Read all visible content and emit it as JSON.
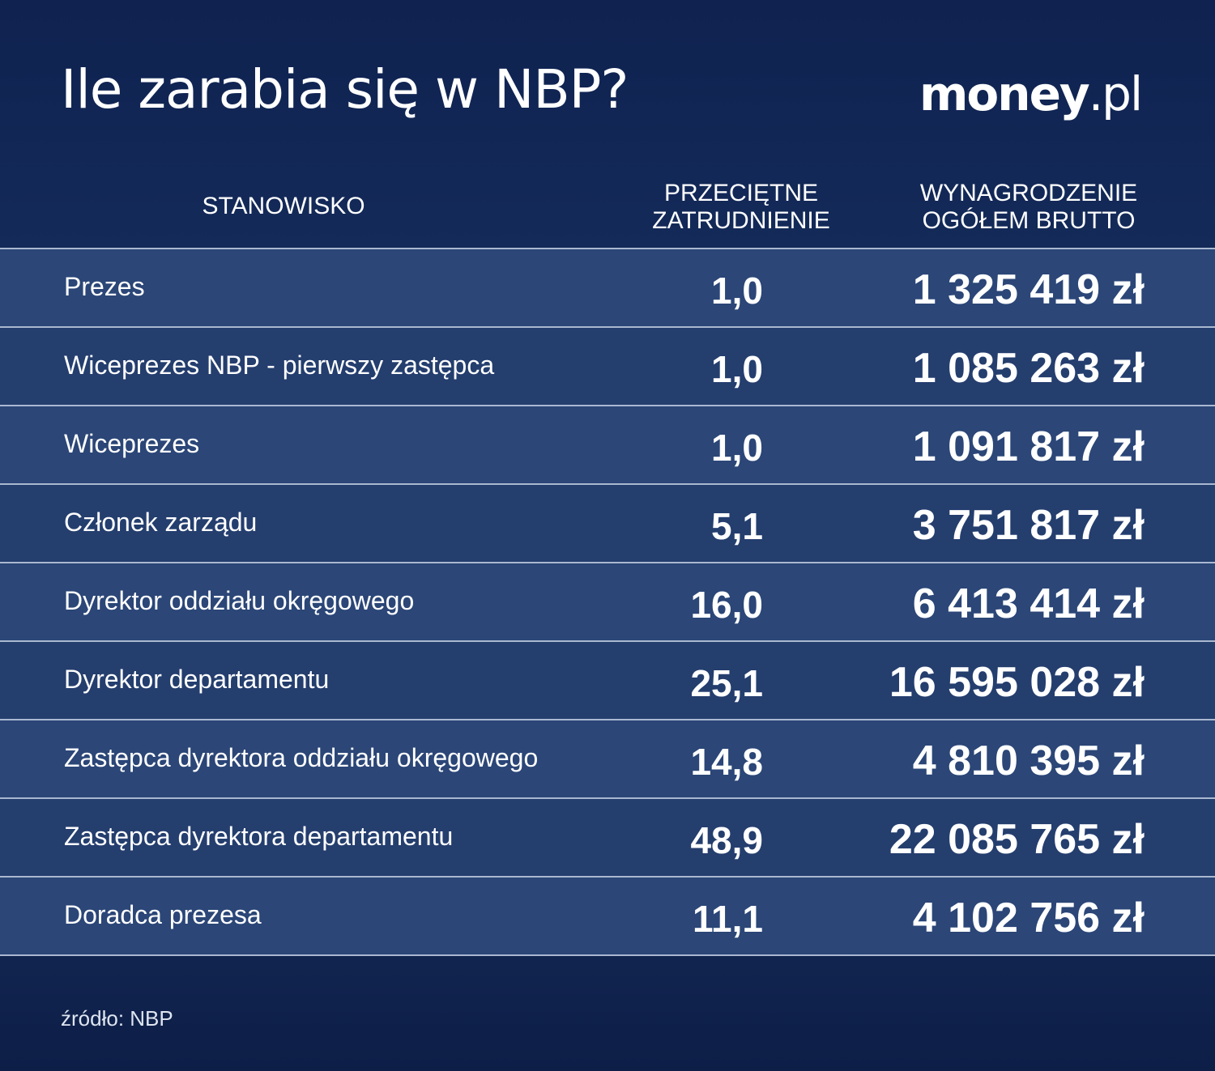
{
  "title": "Ile zarabia się w NBP?",
  "logo": {
    "main": "money",
    "suffix": ".pl"
  },
  "source": "źródło: NBP",
  "chart_data": {
    "type": "table",
    "title": "Ile zarabia się w NBP?",
    "columns": [
      "STANOWISKO",
      "PRZECIĘTNE ZATRUDNIENIE",
      "WYNAGRODZENIE OGÓŁEM BRUTTO"
    ],
    "column_lines": [
      [
        "STANOWISKO"
      ],
      [
        "PRZECIĘTNE",
        "ZATRUDNIENIE"
      ],
      [
        "WYNAGRODZENIE",
        "OGÓŁEM BRUTTO"
      ]
    ],
    "rows": [
      {
        "position": "Prezes",
        "employment": "1,0",
        "salary": "1 325 419 zł"
      },
      {
        "position": "Wiceprezes NBP - pierwszy zastępca",
        "employment": "1,0",
        "salary": "1 085 263 zł"
      },
      {
        "position": "Wiceprezes",
        "employment": "1,0",
        "salary": "1 091 817 zł"
      },
      {
        "position": "Członek zarządu",
        "employment": "5,1",
        "salary": "3 751 817 zł"
      },
      {
        "position": "Dyrektor oddziału okręgowego",
        "employment": "16,0",
        "salary": "6 413 414 zł"
      },
      {
        "position": "Dyrektor departamentu",
        "employment": "25,1",
        "salary": "16 595 028 zł"
      },
      {
        "position": "Zastępca dyrektora oddziału okręgowego",
        "employment": "14,8",
        "salary": "4 810 395 zł"
      },
      {
        "position": "Zastępca dyrektora departamentu",
        "employment": "48,9",
        "salary": "22 085 765 zł"
      },
      {
        "position": "Doradca prezesa",
        "employment": "11,1",
        "salary": "4 102 756 zł"
      }
    ]
  }
}
